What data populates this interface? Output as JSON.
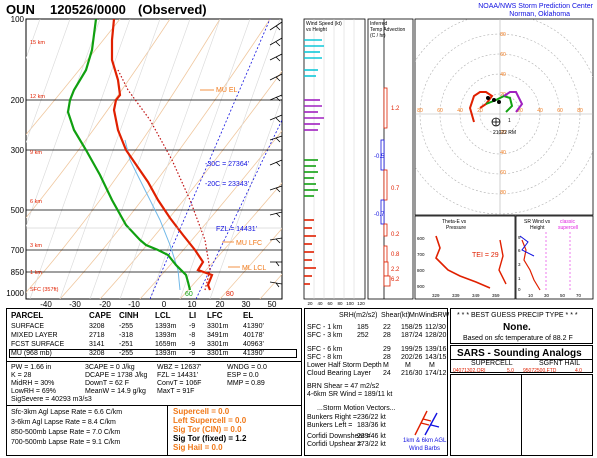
{
  "header": {
    "station": "OUN",
    "datetime": "120526/0000",
    "status": "(Observed)",
    "center": "NOAA/NWS Storm Prediction Center",
    "location": "Norman, Oklahoma"
  },
  "skewt": {
    "pressure_labels": [
      "100",
      "200",
      "300",
      "500",
      "700",
      "850",
      "1000"
    ],
    "temp_labels": [
      "-50",
      "-40",
      "-30",
      "-20",
      "-10",
      "0",
      "10",
      "20",
      "30",
      "40",
      "50"
    ],
    "height_labels": [
      "15 km",
      "12 km",
      "9 km",
      "6 km",
      "3 km",
      "1 km",
      "SFC (357ft)"
    ],
    "annotations": {
      "mu_el": "MU EL",
      "c30": "-30C = 27364'",
      "c20": "-20C = 23343'",
      "fzl": "FZL = 14431'",
      "mu_lfc": "MU LFC",
      "ml_lcl": "ML LCL",
      "t60": "60",
      "t80": "80"
    }
  },
  "wind_speed_panel": {
    "title": "Wind Speed (kt)",
    "subtitle": "vs Height",
    "axis": [
      "20",
      "40",
      "60",
      "80",
      "100",
      "120"
    ]
  },
  "temp_adv_panel": {
    "title": "Inferred",
    "subtitle": "Temp Advection",
    "units": "(C / hr)",
    "values": [
      "1.2",
      "-0.5",
      "0.7",
      "-0.7",
      "0.2",
      "0.8",
      "2.2",
      "6.2"
    ]
  },
  "hodograph": {
    "rm_label": "21022 RM",
    "storm_label": "1"
  },
  "theta_panel": {
    "title": "Theta-E vs",
    "subtitle": "Pressure",
    "axis": [
      "329",
      "339",
      "349",
      "359"
    ],
    "pres": [
      "600",
      "700",
      "800",
      "900"
    ]
  },
  "sr_panel": {
    "title": "SR Wind vs",
    "subtitle": "Height",
    "classic": "classic",
    "supercell": "supercell",
    "tei": "TEI = 29",
    "axis": [
      "10",
      "30",
      "50",
      "70"
    ],
    "km": [
      "9",
      "6",
      "3",
      "1",
      "0"
    ]
  },
  "parcel_table": {
    "headers": [
      "PARCEL",
      "CAPE",
      "CINH",
      "LCL",
      "LI",
      "LFC",
      "EL"
    ],
    "rows": [
      [
        "SURFACE",
        "3208",
        "-255",
        "1393m",
        "-9",
        "3301m",
        "41390'"
      ],
      [
        "MIXED LAYER",
        "2718",
        "-318",
        "1393m",
        "-8",
        "3491m",
        "40178'"
      ],
      [
        "FCST SURFACE",
        "3141",
        "-251",
        "1659m",
        "-9",
        "3301m",
        "40963'"
      ],
      [
        "MU  (968 mb)",
        "3208",
        "-255",
        "1393m",
        "-9",
        "3301m",
        "41390'"
      ]
    ]
  },
  "indices": {
    "col1": [
      "PW = 1.66 in",
      "K = 28",
      "MidRH = 30%",
      "LowRH = 69%",
      "SigSevere = 40293 m3/s3"
    ],
    "col2": [
      "3CAPE = 0 J/kg",
      "DCAPE = 1738 J/kg",
      "DownT = 62 F",
      "MeanW = 14.9 g/kg"
    ],
    "col3": [
      "WBZ = 12637'",
      "FZL = 14431'",
      "ConvT = 106F",
      "MaxT = 91F"
    ],
    "col4": [
      "WNDG = 0.0",
      "ESP = 0.0",
      "MMP = 0.89"
    ],
    "lapse": [
      "Sfc-3km Agl Lapse Rate = 6.6 C/km",
      "3-6km Agl Lapse Rate = 8.4 C/km",
      "850-500mb Lapse Rate = 7.0 C/km",
      "700-500mb Lapse Rate = 9.1 C/km"
    ],
    "severe": [
      "Supercell = 0.0",
      "Left Supercell = 0.0",
      "Sig Tor (CIN) = 0.0",
      "Sig Tor (fixed) = 1.2",
      "Sig Hail = 0.0"
    ]
  },
  "kinematics": {
    "headers": [
      "SRH(m2/s2)",
      "Shear(kt)",
      "MnWind",
      "SRW"
    ],
    "rows": [
      [
        "SFC - 1 km",
        "185",
        "22",
        "158/25",
        "112/30"
      ],
      [
        "SFC - 3 km",
        "252",
        "28",
        "187/24",
        "128/20"
      ],
      [
        "SFC - 6 km",
        "",
        "29",
        "199/25",
        "139/16"
      ],
      [
        "SFC - 8 km",
        "",
        "28",
        "202/26",
        "143/15"
      ],
      [
        "Lower Half Storm Depth",
        "",
        "M",
        "M",
        "M"
      ],
      [
        "Cloud Bearing Layer",
        "",
        "24",
        "216/30",
        "174/12"
      ]
    ],
    "brn": "BRN Shear = 47 m2/s2",
    "kt46": "4-6km SR Wind = 189/11 kt",
    "motion_title": "...Storm Motion Vectors...",
    "motions": [
      [
        "Bunkers Right =",
        "236/22 kt"
      ],
      [
        "Bunkers Left =",
        "183/36 kt"
      ],
      [
        "Corfidi Downshear =",
        "239/46 kt"
      ],
      [
        "Corfidi Upshear =",
        "273/22 kt"
      ]
    ],
    "agl": "1km & 6km AGL",
    "barbs": "Wind Barbs"
  },
  "precip": {
    "title": "* * * BEST GUESS PRECIP TYPE * * *",
    "value": "None.",
    "note": "Based on sfc temperature of 88.2 F"
  },
  "sars": {
    "title": "SARS - Sounding Analogs",
    "col1": "SUPERCELL",
    "col2": "SGFNT HAIL",
    "row1": "04071302.ORI",
    "row1b": "5.0",
    "row2": "95072500.FTD",
    "row2b": "4.0"
  },
  "colors": {
    "red": "#e02000",
    "green": "#10a010",
    "blue": "#1010e0",
    "orange": "#f07818",
    "cyan": "#10c8d8",
    "purple": "#a020c0"
  }
}
